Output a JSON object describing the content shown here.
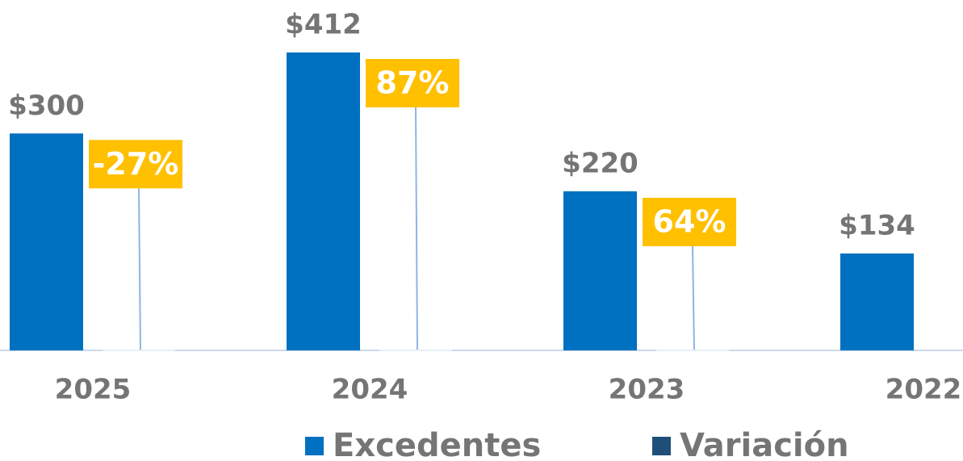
{
  "chart_data": {
    "type": "bar",
    "categories": [
      "2025",
      "2024",
      "2023",
      "2022"
    ],
    "series": [
      {
        "name": "Excedentes",
        "color": "#0070c0",
        "values": [
          300,
          412,
          220,
          134
        ],
        "value_labels": [
          "$300",
          "$412",
          "$220",
          "$134"
        ]
      },
      {
        "name": "Variación",
        "color": "#1f4e79",
        "values": [
          -27,
          87,
          64,
          null
        ],
        "value_labels": [
          "-27%",
          "87%",
          "64%",
          null
        ]
      }
    ],
    "label_color": "#ffc000"
  }
}
